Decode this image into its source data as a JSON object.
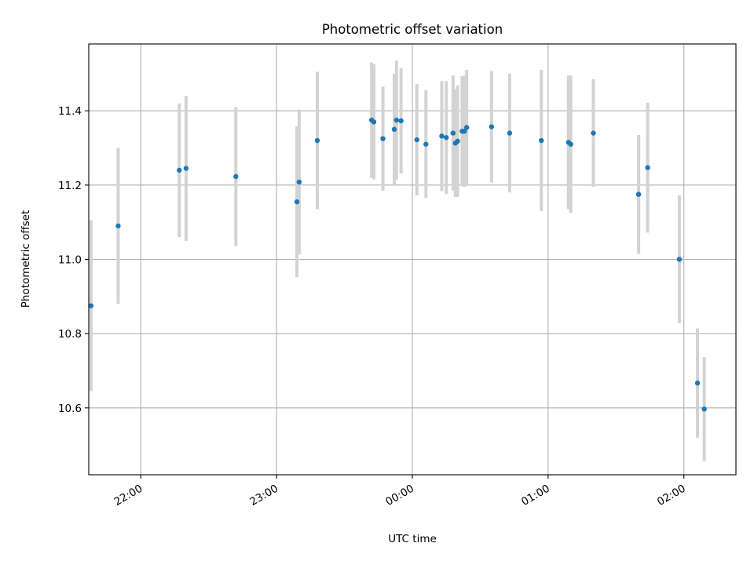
{
  "chart_data": {
    "type": "scatter",
    "title": "Photometric offset variation",
    "xlabel": "UTC time",
    "ylabel": "Photometric offset",
    "x_ticks": [
      "22:00",
      "23:00",
      "00:00",
      "01:00",
      "02:00"
    ],
    "x_tick_values": [
      "21:00+60",
      "22:00+60",
      "23:00+60",
      "24:00+60",
      "25:00+60"
    ],
    "y_ticks": [
      "10.6",
      "10.8",
      "11.0",
      "11.2",
      "11.4"
    ],
    "y_tick_values": [
      10.6,
      10.8,
      11.0,
      11.2,
      11.4
    ],
    "xlim": [
      "21:37",
      "02:23"
    ],
    "ylim": [
      10.42,
      11.58
    ],
    "grid": true,
    "points": [
      {
        "x": "21:38",
        "y": 10.875,
        "err": 0.23
      },
      {
        "x": "21:50",
        "y": 11.09,
        "err": 0.21
      },
      {
        "x": "22:17",
        "y": 11.24,
        "err": 0.18
      },
      {
        "x": "22:20",
        "y": 11.245,
        "err": 0.195
      },
      {
        "x": "22:42",
        "y": 11.223,
        "err": 0.187
      },
      {
        "x": "23:09",
        "y": 11.155,
        "err": 0.203
      },
      {
        "x": "23:10",
        "y": 11.208,
        "err": 0.195
      },
      {
        "x": "23:18",
        "y": 11.32,
        "err": 0.185
      },
      {
        "x": "23:42",
        "y": 11.375,
        "err": 0.155
      },
      {
        "x": "23:43",
        "y": 11.37,
        "err": 0.155
      },
      {
        "x": "23:47",
        "y": 11.325,
        "err": 0.14
      },
      {
        "x": "23:52",
        "y": 11.35,
        "err": 0.15
      },
      {
        "x": "23:53",
        "y": 11.375,
        "err": 0.16
      },
      {
        "x": "23:55",
        "y": 11.373,
        "err": 0.142
      },
      {
        "x": "00:02",
        "y": 11.322,
        "err": 0.15
      },
      {
        "x": "00:06",
        "y": 11.31,
        "err": 0.145
      },
      {
        "x": "00:13",
        "y": 11.332,
        "err": 0.148
      },
      {
        "x": "00:15",
        "y": 11.328,
        "err": 0.152
      },
      {
        "x": "00:18",
        "y": 11.34,
        "err": 0.155
      },
      {
        "x": "00:19",
        "y": 11.313,
        "err": 0.145
      },
      {
        "x": "00:20",
        "y": 11.318,
        "err": 0.15
      },
      {
        "x": "00:22",
        "y": 11.345,
        "err": 0.148
      },
      {
        "x": "00:23",
        "y": 11.345,
        "err": 0.15
      },
      {
        "x": "00:24",
        "y": 11.355,
        "err": 0.155
      },
      {
        "x": "00:35",
        "y": 11.357,
        "err": 0.15
      },
      {
        "x": "00:43",
        "y": 11.34,
        "err": 0.16
      },
      {
        "x": "00:57",
        "y": 11.32,
        "err": 0.19
      },
      {
        "x": "01:09",
        "y": 11.315,
        "err": 0.18
      },
      {
        "x": "01:10",
        "y": 11.31,
        "err": 0.185
      },
      {
        "x": "01:20",
        "y": 11.34,
        "err": 0.145
      },
      {
        "x": "01:40",
        "y": 11.175,
        "err": 0.16
      },
      {
        "x": "01:44",
        "y": 11.247,
        "err": 0.175
      },
      {
        "x": "01:58",
        "y": 11.0,
        "err": 0.172
      },
      {
        "x": "02:06",
        "y": 10.667,
        "err": 0.147
      },
      {
        "x": "02:09",
        "y": 10.597,
        "err": 0.14
      }
    ]
  },
  "colors": {
    "point": "#1f77b4",
    "errorbar": "#d3d3d3",
    "grid": "#b0b0b0"
  }
}
